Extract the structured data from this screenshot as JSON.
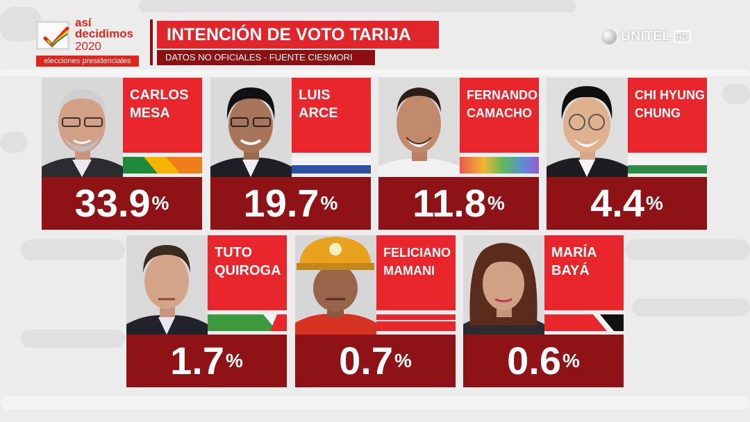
{
  "logo": {
    "line1": "así",
    "line2": "decidimos",
    "line3": "2020",
    "bar": "elecciones presidenciales"
  },
  "header": {
    "title": "INTENCIÓN DE VOTO TARIJA",
    "subtitle": "DATOS NO OFICIALES - FUENTE CIESMORI"
  },
  "broadcaster": {
    "name": "UNITEL",
    "badge": "HD"
  },
  "candidates": [
    {
      "first": "CARLOS",
      "last": "MESA",
      "pct": "33.9",
      "sign": "%"
    },
    {
      "first": "LUIS",
      "last": "ARCE",
      "pct": "19.7",
      "sign": "%"
    },
    {
      "first": "FERNANDO",
      "last": "CAMACHO",
      "pct": "11.8",
      "sign": "%"
    },
    {
      "first": "CHI HYUNG",
      "last": "CHUNG",
      "pct": "4.4",
      "sign": "%"
    },
    {
      "first": "TUTO",
      "last": "QUIROGA",
      "pct": "1.7",
      "sign": "%"
    },
    {
      "first": "FELICIANO",
      "last": "MAMANI",
      "pct": "0.7",
      "sign": "%"
    },
    {
      "first": "MARÍA",
      "last": "BAYÁ",
      "pct": "0.6",
      "sign": "%"
    }
  ],
  "colors": {
    "red": "#e8262b",
    "dark_red": "#8e1216",
    "background": "#ececec"
  }
}
